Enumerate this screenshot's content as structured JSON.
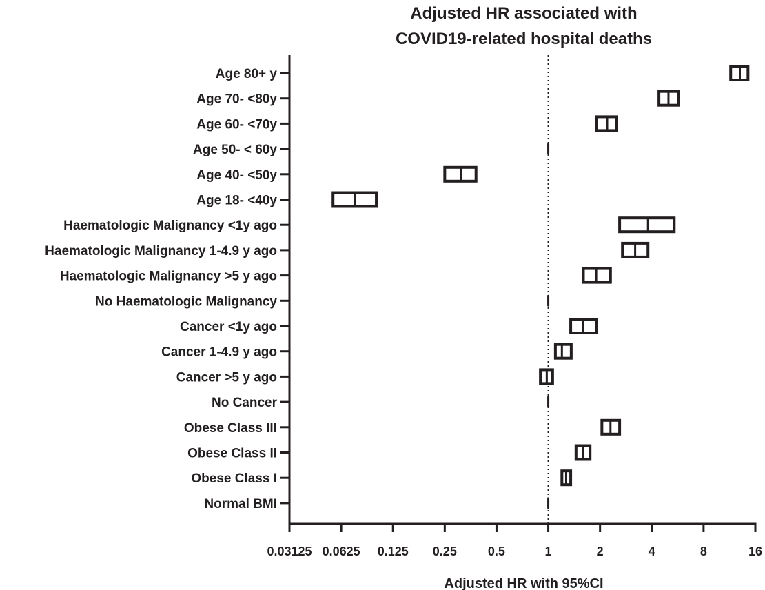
{
  "chart_data": {
    "type": "forest",
    "title": "Adjusted HR associated with COVID19-related hospital deaths",
    "title_lines": [
      "Adjusted HR associated with",
      "COVID19-related hospital deaths"
    ],
    "xlabel": "Adjusted HR with 95%CI",
    "ylabel": "",
    "x_scale": "log2",
    "xlim": [
      0.03125,
      16
    ],
    "x_ticks": [
      0.03125,
      0.0625,
      0.125,
      0.25,
      0.5,
      1,
      2,
      4,
      8,
      16
    ],
    "x_tick_labels": [
      "0.03125",
      "0.0625",
      "0.125",
      "0.25",
      "0.5",
      "1",
      "2",
      "4",
      "8",
      "16"
    ],
    "reference_line": 1,
    "grid": false,
    "rows": [
      {
        "label": "Age 80+ y",
        "hr": 13.0,
        "lower": 11.5,
        "upper": 14.5
      },
      {
        "label": "Age 70- <80y",
        "hr": 5.0,
        "lower": 4.4,
        "upper": 5.7
      },
      {
        "label": "Age 60- <70y",
        "hr": 2.2,
        "lower": 1.9,
        "upper": 2.5
      },
      {
        "label": "Age 50- < 60y",
        "hr": 1.0,
        "lower": 1.0,
        "upper": 1.0
      },
      {
        "label": "Age 40- <50y",
        "hr": 0.31,
        "lower": 0.25,
        "upper": 0.38
      },
      {
        "label": "Age 18- <40y",
        "hr": 0.075,
        "lower": 0.056,
        "upper": 0.1
      },
      {
        "label": "Haematologic Malignancy <1y ago",
        "hr": 3.8,
        "lower": 2.6,
        "upper": 5.4
      },
      {
        "label": "Haematologic Malignancy 1-4.9 y ago",
        "hr": 3.2,
        "lower": 2.7,
        "upper": 3.8
      },
      {
        "label": "Haematologic Malignancy >5 y ago",
        "hr": 1.9,
        "lower": 1.6,
        "upper": 2.3
      },
      {
        "label": "No Haematologic Malignancy",
        "hr": 1.0,
        "lower": 1.0,
        "upper": 1.0
      },
      {
        "label": "Cancer <1y ago",
        "hr": 1.6,
        "lower": 1.35,
        "upper": 1.9
      },
      {
        "label": "Cancer 1-4.9 y ago",
        "hr": 1.2,
        "lower": 1.1,
        "upper": 1.36
      },
      {
        "label": "Cancer >5 y ago",
        "hr": 0.98,
        "lower": 0.9,
        "upper": 1.06
      },
      {
        "label": "No Cancer",
        "hr": 1.0,
        "lower": 1.0,
        "upper": 1.0
      },
      {
        "label": "Obese Class III",
        "hr": 2.3,
        "lower": 2.05,
        "upper": 2.6
      },
      {
        "label": "Obese Class II",
        "hr": 1.6,
        "lower": 1.45,
        "upper": 1.75
      },
      {
        "label": "Obese Class I",
        "hr": 1.27,
        "lower": 1.2,
        "upper": 1.35
      },
      {
        "label": "Normal BMI",
        "hr": 1.0,
        "lower": 1.0,
        "upper": 1.0
      }
    ],
    "colors": {
      "ink": "#231f20",
      "background": "#ffffff"
    }
  }
}
